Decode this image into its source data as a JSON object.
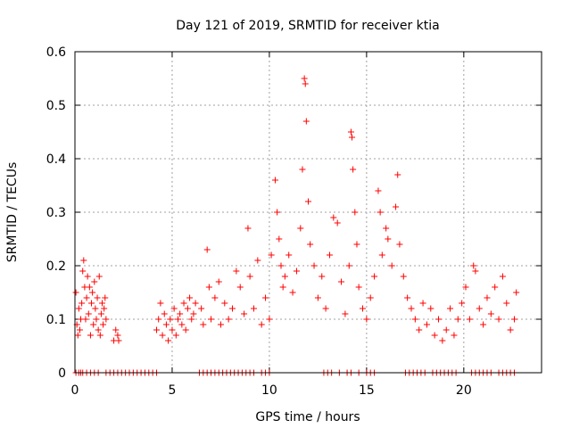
{
  "chart_data": {
    "type": "scatter",
    "title": "Day 121 of 2019, SRMTID for receiver ktia",
    "xlabel": "GPS time / hours",
    "ylabel": "SRMTID / TECUs",
    "xlim": [
      0,
      24
    ],
    "ylim": [
      0,
      0.6
    ],
    "xticks": [
      0,
      5,
      10,
      15,
      20
    ],
    "yticks": [
      0,
      0.1,
      0.2,
      0.3,
      0.4,
      0.5,
      0.6
    ],
    "grid": true,
    "marker": "+",
    "series_color": "#ff0000",
    "series": [
      {
        "name": "SRMTID",
        "points": [
          [
            0.05,
            0.15
          ],
          [
            0.1,
            0.09
          ],
          [
            0.15,
            0.07
          ],
          [
            0.2,
            0.12
          ],
          [
            0.25,
            0.08
          ],
          [
            0.3,
            0.1
          ],
          [
            0.35,
            0.13
          ],
          [
            0.4,
            0.19
          ],
          [
            0.45,
            0.21
          ],
          [
            0.5,
            0.16
          ],
          [
            0.55,
            0.1
          ],
          [
            0.6,
            0.14
          ],
          [
            0.65,
            0.18
          ],
          [
            0.7,
            0.11
          ],
          [
            0.75,
            0.16
          ],
          [
            0.8,
            0.07
          ],
          [
            0.85,
            0.13
          ],
          [
            0.9,
            0.15
          ],
          [
            0.95,
            0.09
          ],
          [
            1.0,
            0.17
          ],
          [
            1.05,
            0.12
          ],
          [
            1.1,
            0.1
          ],
          [
            1.15,
            0.14
          ],
          [
            1.2,
            0.08
          ],
          [
            1.25,
            0.18
          ],
          [
            1.3,
            0.07
          ],
          [
            1.35,
            0.11
          ],
          [
            1.4,
            0.13
          ],
          [
            1.45,
            0.09
          ],
          [
            1.5,
            0.12
          ],
          [
            1.55,
            0.14
          ],
          [
            1.6,
            0.1
          ],
          [
            2.0,
            0.06
          ],
          [
            2.1,
            0.08
          ],
          [
            2.2,
            0.07
          ],
          [
            2.25,
            0.06
          ],
          [
            4.2,
            0.08
          ],
          [
            4.3,
            0.1
          ],
          [
            4.4,
            0.13
          ],
          [
            4.5,
            0.07
          ],
          [
            4.6,
            0.11
          ],
          [
            4.7,
            0.09
          ],
          [
            4.8,
            0.06
          ],
          [
            4.9,
            0.1
          ],
          [
            5.0,
            0.08
          ],
          [
            5.1,
            0.12
          ],
          [
            5.2,
            0.07
          ],
          [
            5.3,
            0.1
          ],
          [
            5.4,
            0.11
          ],
          [
            5.5,
            0.09
          ],
          [
            5.6,
            0.13
          ],
          [
            5.7,
            0.08
          ],
          [
            5.8,
            0.12
          ],
          [
            5.9,
            0.14
          ],
          [
            6.0,
            0.1
          ],
          [
            6.1,
            0.11
          ],
          [
            6.2,
            0.13
          ],
          [
            6.5,
            0.12
          ],
          [
            6.6,
            0.09
          ],
          [
            6.8,
            0.23
          ],
          [
            6.9,
            0.16
          ],
          [
            7.0,
            0.1
          ],
          [
            7.2,
            0.14
          ],
          [
            7.4,
            0.17
          ],
          [
            7.5,
            0.09
          ],
          [
            7.7,
            0.13
          ],
          [
            7.9,
            0.1
          ],
          [
            8.1,
            0.12
          ],
          [
            8.3,
            0.19
          ],
          [
            8.5,
            0.16
          ],
          [
            8.7,
            0.11
          ],
          [
            8.9,
            0.27
          ],
          [
            9.0,
            0.18
          ],
          [
            9.2,
            0.12
          ],
          [
            9.4,
            0.21
          ],
          [
            9.6,
            0.09
          ],
          [
            9.8,
            0.14
          ],
          [
            10.0,
            0.1
          ],
          [
            10.1,
            0.22
          ],
          [
            10.3,
            0.36
          ],
          [
            10.4,
            0.3
          ],
          [
            10.5,
            0.25
          ],
          [
            10.6,
            0.2
          ],
          [
            10.7,
            0.16
          ],
          [
            10.8,
            0.18
          ],
          [
            11.0,
            0.22
          ],
          [
            11.2,
            0.15
          ],
          [
            11.4,
            0.19
          ],
          [
            11.6,
            0.27
          ],
          [
            11.7,
            0.38
          ],
          [
            11.8,
            0.55
          ],
          [
            11.85,
            0.54
          ],
          [
            11.9,
            0.47
          ],
          [
            12.0,
            0.32
          ],
          [
            12.1,
            0.24
          ],
          [
            12.3,
            0.2
          ],
          [
            12.5,
            0.14
          ],
          [
            12.7,
            0.18
          ],
          [
            12.9,
            0.12
          ],
          [
            13.1,
            0.22
          ],
          [
            13.3,
            0.29
          ],
          [
            13.5,
            0.28
          ],
          [
            13.7,
            0.17
          ],
          [
            13.9,
            0.11
          ],
          [
            14.1,
            0.2
          ],
          [
            14.2,
            0.45
          ],
          [
            14.25,
            0.44
          ],
          [
            14.3,
            0.38
          ],
          [
            14.4,
            0.3
          ],
          [
            14.5,
            0.24
          ],
          [
            14.6,
            0.16
          ],
          [
            14.8,
            0.12
          ],
          [
            15.0,
            0.1
          ],
          [
            15.2,
            0.14
          ],
          [
            15.4,
            0.18
          ],
          [
            15.6,
            0.34
          ],
          [
            15.7,
            0.3
          ],
          [
            15.8,
            0.22
          ],
          [
            16.0,
            0.27
          ],
          [
            16.1,
            0.25
          ],
          [
            16.3,
            0.2
          ],
          [
            16.5,
            0.31
          ],
          [
            16.6,
            0.37
          ],
          [
            16.7,
            0.24
          ],
          [
            16.9,
            0.18
          ],
          [
            17.1,
            0.14
          ],
          [
            17.3,
            0.12
          ],
          [
            17.5,
            0.1
          ],
          [
            17.7,
            0.08
          ],
          [
            17.9,
            0.13
          ],
          [
            18.1,
            0.09
          ],
          [
            18.3,
            0.12
          ],
          [
            18.5,
            0.07
          ],
          [
            18.7,
            0.1
          ],
          [
            18.9,
            0.06
          ],
          [
            19.1,
            0.08
          ],
          [
            19.3,
            0.12
          ],
          [
            19.5,
            0.07
          ],
          [
            19.7,
            0.1
          ],
          [
            19.9,
            0.13
          ],
          [
            20.1,
            0.16
          ],
          [
            20.3,
            0.1
          ],
          [
            20.5,
            0.2
          ],
          [
            20.6,
            0.19
          ],
          [
            20.8,
            0.12
          ],
          [
            21.0,
            0.09
          ],
          [
            21.2,
            0.14
          ],
          [
            21.4,
            0.11
          ],
          [
            21.6,
            0.16
          ],
          [
            21.8,
            0.1
          ],
          [
            22.0,
            0.18
          ],
          [
            22.2,
            0.13
          ],
          [
            22.4,
            0.08
          ],
          [
            22.6,
            0.1
          ],
          [
            22.7,
            0.15
          ]
        ]
      }
    ],
    "zero_points_x": [
      0.05,
      0.2,
      0.3,
      0.4,
      0.6,
      0.8,
      1.0,
      1.2,
      1.6,
      1.8,
      2.0,
      2.2,
      2.4,
      2.6,
      2.8,
      3.0,
      3.2,
      3.4,
      3.6,
      3.8,
      4.0,
      4.2,
      6.4,
      6.6,
      6.8,
      7.0,
      7.2,
      7.4,
      7.6,
      7.8,
      8.0,
      8.2,
      8.4,
      8.6,
      8.8,
      9.0,
      9.2,
      9.6,
      9.8,
      10.0,
      12.8,
      13.0,
      13.2,
      13.6,
      14.0,
      14.2,
      14.6,
      15.0,
      15.2,
      15.4,
      17.0,
      17.2,
      17.4,
      17.6,
      17.8,
      18.0,
      18.4,
      18.6,
      18.8,
      19.0,
      19.2,
      19.4,
      19.6,
      20.4,
      20.6,
      20.8,
      21.0,
      21.2,
      21.4,
      21.8,
      22.0,
      22.2,
      22.4,
      22.6
    ]
  }
}
